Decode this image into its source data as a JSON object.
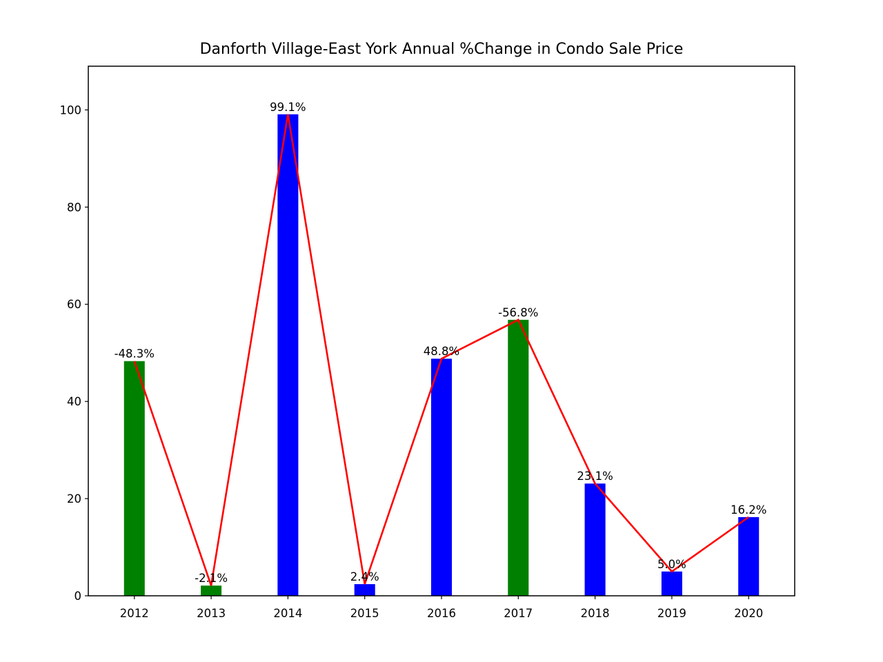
{
  "chart_data": {
    "type": "bar",
    "title": "Danforth Village-East York Annual %Change in Condo Sale Price",
    "xlabel": "",
    "ylabel": "",
    "categories": [
      "2012",
      "2013",
      "2014",
      "2015",
      "2016",
      "2017",
      "2018",
      "2019",
      "2020"
    ],
    "values": [
      48.3,
      2.1,
      99.1,
      2.4,
      48.8,
      56.8,
      23.1,
      5.0,
      16.2
    ],
    "data_labels": [
      "-48.3%",
      "-2.1%",
      "99.1%",
      "2.4%",
      "48.8%",
      "-56.8%",
      "23.1%",
      "5.0%",
      "16.2%"
    ],
    "bar_colors": [
      "#008000",
      "#008000",
      "#0000ff",
      "#0000ff",
      "#0000ff",
      "#008000",
      "#0000ff",
      "#0000ff",
      "#0000ff"
    ],
    "line_color": "#ff0000",
    "line_values": [
      48.3,
      2.1,
      99.1,
      2.4,
      48.8,
      56.8,
      23.1,
      5.0,
      16.2
    ],
    "yticks": [
      0,
      20,
      40,
      60,
      80,
      100
    ],
    "ylim": [
      0,
      109
    ],
    "grid": false,
    "legend": "none"
  }
}
